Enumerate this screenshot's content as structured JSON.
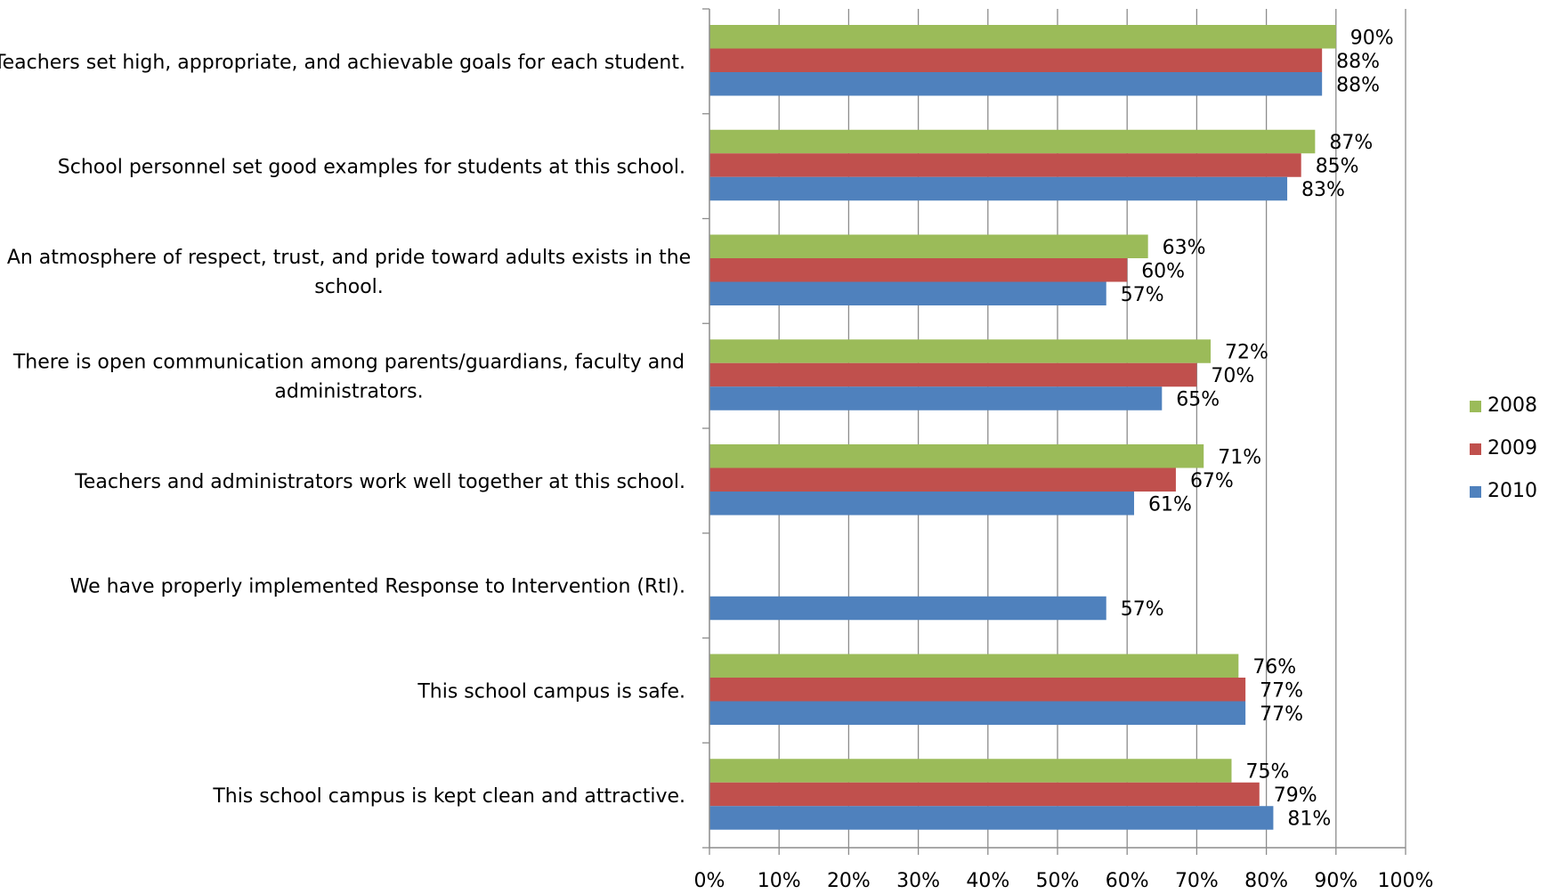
{
  "chart_data": {
    "type": "bar",
    "orientation": "horizontal",
    "categories": [
      "Teachers set high, appropriate, and achievable goals for each student.",
      "School personnel set good examples for students at this school.",
      "An atmosphere of respect, trust, and pride toward adults exists in the school.",
      "There is open communication among parents/guardians, faculty and administrators.",
      "Teachers and administrators work well together at this school.",
      "We have properly implemented Response to Intervention (RtI).",
      "This school campus is safe.",
      "This school campus is kept clean and attractive."
    ],
    "category_lines": [
      [
        "Teachers set high, appropriate, and achievable goals for each student."
      ],
      [
        "School personnel set good examples for students at this school."
      ],
      [
        "An atmosphere of respect, trust, and pride toward adults exists in the",
        "school."
      ],
      [
        "There is open communication among parents/guardians, faculty and",
        "administrators."
      ],
      [
        "Teachers and administrators work well together at this school."
      ],
      [
        "We have properly implemented Response to Intervention (RtI)."
      ],
      [
        "This school campus is safe."
      ],
      [
        "This school campus is kept clean and attractive."
      ]
    ],
    "series": [
      {
        "name": "2008",
        "color": "#9BBB59",
        "values": [
          0.9,
          0.87,
          0.63,
          0.72,
          0.71,
          null,
          0.76,
          0.75
        ],
        "labels": [
          "90%",
          "87%",
          "63%",
          "72%",
          "71%",
          null,
          "76%",
          "75%"
        ]
      },
      {
        "name": "2009",
        "color": "#C0504D",
        "values": [
          0.88,
          0.85,
          0.6,
          0.7,
          0.67,
          null,
          0.77,
          0.79
        ],
        "labels": [
          "88%",
          "85%",
          "60%",
          "70%",
          "67%",
          null,
          "77%",
          "79%"
        ]
      },
      {
        "name": "2010",
        "color": "#4F81BD",
        "values": [
          0.88,
          0.83,
          0.57,
          0.65,
          0.61,
          0.57,
          0.77,
          0.81
        ],
        "labels": [
          "88%",
          "83%",
          "57%",
          "65%",
          "61%",
          "57%",
          "77%",
          "81%"
        ]
      }
    ],
    "xlim": [
      0,
      1
    ],
    "xticks": [
      0,
      0.1,
      0.2,
      0.3,
      0.4,
      0.5,
      0.6,
      0.7,
      0.8,
      0.9,
      1.0
    ],
    "xtick_labels": [
      "0%",
      "10%",
      "20%",
      "30%",
      "40%",
      "50%",
      "60%",
      "70%",
      "80%",
      "90%",
      "100%"
    ],
    "grid": "vertical",
    "legend_position": "right",
    "title": "",
    "xlabel": "",
    "ylabel": ""
  }
}
